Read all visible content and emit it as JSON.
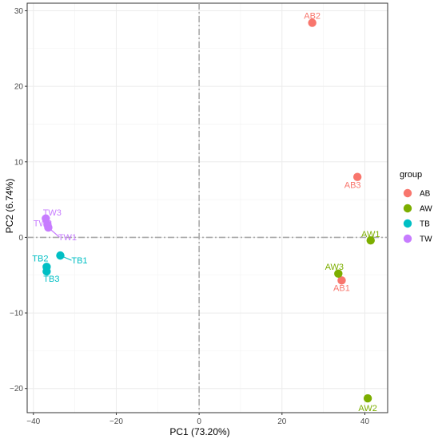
{
  "chart_data": {
    "type": "scatter",
    "xlabel": "PC1 (73.20%)",
    "ylabel": "PC2 (6.74%)",
    "xlim": [
      -41.5,
      45.5
    ],
    "ylim": [
      -23.2,
      31.0
    ],
    "xticks": [
      -40,
      -20,
      0,
      20,
      40
    ],
    "yticks": [
      -20,
      -10,
      0,
      10,
      20,
      30
    ],
    "grid": true,
    "reference_lines": {
      "x": 0,
      "y": 0
    },
    "legend": {
      "title": "group",
      "placement": "right",
      "entries": [
        {
          "label": "AB",
          "color": "#F8766D"
        },
        {
          "label": "AW",
          "color": "#7CAE00"
        },
        {
          "label": "TB",
          "color": "#00BFC4"
        },
        {
          "label": "TW",
          "color": "#C77CFF"
        }
      ]
    },
    "series": [
      {
        "name": "AB",
        "color": "#F8766D",
        "points": [
          {
            "label": "AB1",
            "x": 34.4,
            "y": -5.7
          },
          {
            "label": "AB2",
            "x": 27.3,
            "y": 28.4
          },
          {
            "label": "AB3",
            "x": 38.2,
            "y": 8.0
          }
        ]
      },
      {
        "name": "AW",
        "color": "#7CAE00",
        "points": [
          {
            "label": "AW1",
            "x": 41.4,
            "y": -0.4
          },
          {
            "label": "AW2",
            "x": 40.7,
            "y": -21.3
          },
          {
            "label": "AW3",
            "x": 33.6,
            "y": -4.8
          }
        ]
      },
      {
        "name": "TB",
        "color": "#00BFC4",
        "points": [
          {
            "label": "TB1",
            "x": -33.5,
            "y": -2.4
          },
          {
            "label": "TB2",
            "x": -36.8,
            "y": -3.9
          },
          {
            "label": "TB3",
            "x": -36.8,
            "y": -4.5
          }
        ]
      },
      {
        "name": "TW",
        "color": "#C77CFF",
        "points": [
          {
            "label": "TW1",
            "x": -36.4,
            "y": 1.3
          },
          {
            "label": "TW2",
            "x": -36.6,
            "y": 1.7
          },
          {
            "label": "TW3",
            "x": -37.0,
            "y": 2.5
          }
        ]
      }
    ]
  }
}
